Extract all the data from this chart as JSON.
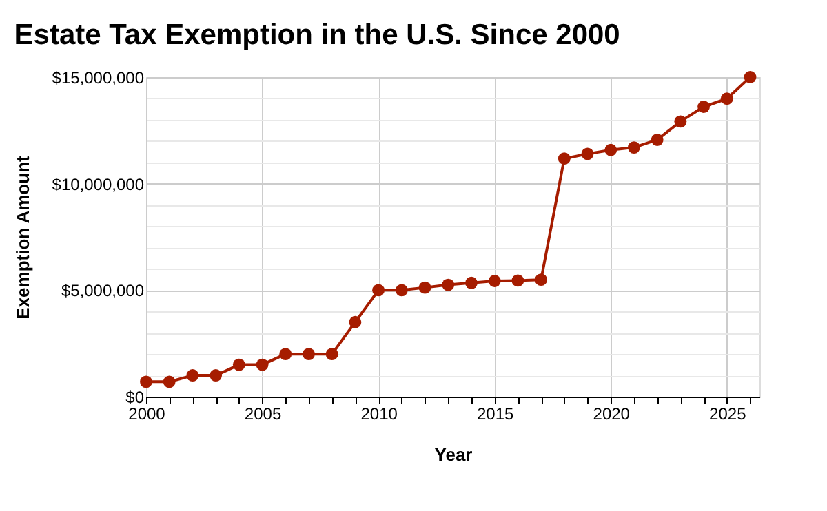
{
  "chart_data": {
    "type": "line",
    "title": "Estate Tax Exemption in the U.S. Since 2000",
    "xlabel": "Year",
    "ylabel": "Exemption Amount",
    "x": [
      2000,
      2001,
      2002,
      2003,
      2004,
      2005,
      2006,
      2007,
      2008,
      2009,
      2010,
      2011,
      2012,
      2013,
      2014,
      2015,
      2016,
      2017,
      2018,
      2019,
      2020,
      2021,
      2022,
      2023,
      2024,
      2025,
      2026
    ],
    "series": [
      {
        "color": "#a61c00",
        "values": [
          700000,
          700000,
          1000000,
          1000000,
          1500000,
          1500000,
          2000000,
          2000000,
          2000000,
          3500000,
          5000000,
          5000000,
          5120000,
          5250000,
          5340000,
          5430000,
          5450000,
          5490000,
          11180000,
          11400000,
          11580000,
          11700000,
          12060000,
          12920000,
          13610000,
          13990000,
          15000000
        ]
      }
    ],
    "xlim": [
      2000,
      2026.4
    ],
    "xticks": [
      2000,
      {
        "value": 2001,
        "label": null
      },
      {
        "value": 2002,
        "label": null
      },
      {
        "value": 2003,
        "label": null
      },
      {
        "value": 2004,
        "label": null
      },
      2005,
      {
        "value": 2006,
        "label": null
      },
      {
        "value": 2007,
        "label": null
      },
      {
        "value": 2008,
        "label": null
      },
      {
        "value": 2009,
        "label": null
      },
      2010,
      {
        "value": 2011,
        "label": null
      },
      {
        "value": 2012,
        "label": null
      },
      {
        "value": 2013,
        "label": null
      },
      {
        "value": 2014,
        "label": null
      },
      2015,
      {
        "value": 2016,
        "label": null
      },
      {
        "value": 2017,
        "label": null
      },
      {
        "value": 2018,
        "label": null
      },
      {
        "value": 2019,
        "label": null
      },
      2020,
      {
        "value": 2021,
        "label": null
      },
      {
        "value": 2022,
        "label": null
      },
      {
        "value": 2023,
        "label": null
      },
      {
        "value": 2024,
        "label": null
      },
      2025,
      {
        "value": 2026,
        "label": null
      }
    ],
    "ylim": [
      0,
      15000000
    ],
    "yticks": [
      {
        "value": 0,
        "label": "$0"
      },
      {
        "value": 1000000,
        "label": null
      },
      {
        "value": 2000000,
        "label": null
      },
      {
        "value": 3000000,
        "label": null
      },
      {
        "value": 4000000,
        "label": null
      },
      {
        "value": 5000000,
        "label": "$5,000,000"
      },
      {
        "value": 6000000,
        "label": null
      },
      {
        "value": 7000000,
        "label": null
      },
      {
        "value": 8000000,
        "label": null
      },
      {
        "value": 9000000,
        "label": null
      },
      {
        "value": 10000000,
        "label": "$10,000,000"
      },
      {
        "value": 11000000,
        "label": null
      },
      {
        "value": 12000000,
        "label": null
      },
      {
        "value": 13000000,
        "label": null
      },
      {
        "value": 14000000,
        "label": null
      },
      {
        "value": 15000000,
        "label": "$15,000,000"
      }
    ],
    "grid": true,
    "marker": "circle",
    "line_style": "solid"
  }
}
